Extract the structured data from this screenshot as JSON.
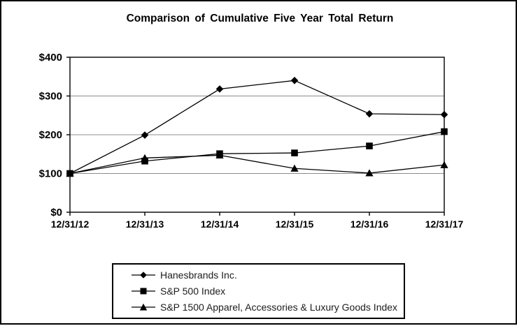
{
  "chart_data": {
    "type": "line",
    "title": "Comparison of Cumulative Five Year Total Return",
    "x_labels": [
      "12/31/12",
      "12/31/13",
      "12/31/14",
      "12/31/15",
      "12/31/16",
      "12/31/17"
    ],
    "y_ticks": [
      {
        "value": 0,
        "label": "$0"
      },
      {
        "value": 100,
        "label": "$100"
      },
      {
        "value": 200,
        "label": "$200"
      },
      {
        "value": 300,
        "label": "$300"
      },
      {
        "value": 400,
        "label": "$400"
      }
    ],
    "ylim": [
      0,
      400
    ],
    "grid": "horizontal-only",
    "legend_position": "bottom",
    "series": [
      {
        "name": "Hanesbrands Inc.",
        "marker": "diamond",
        "color": "#000000",
        "values": [
          100,
          199,
          318,
          340,
          254,
          252
        ]
      },
      {
        "name": "S&P 500 Index",
        "marker": "square",
        "color": "#000000",
        "values": [
          100,
          132,
          151,
          153,
          171,
          208
        ]
      },
      {
        "name": "S&P 1500 Apparel, Accessories & Luxury Goods Index",
        "marker": "triangle",
        "color": "#000000",
        "values": [
          100,
          140,
          147,
          113,
          101,
          122
        ]
      }
    ],
    "colors": {
      "line": "#000000",
      "grid": "#8c8c8c",
      "axis": "#000000",
      "background": "#ffffff",
      "border": "#000000"
    }
  }
}
